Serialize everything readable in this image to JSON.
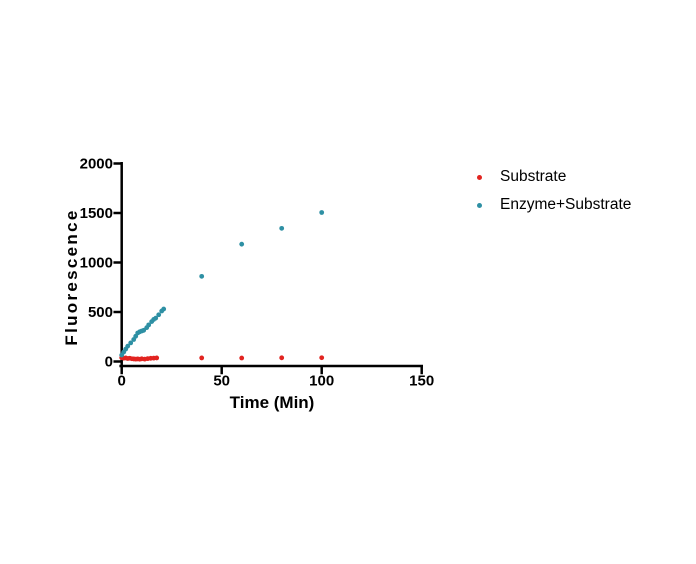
{
  "chart_data": {
    "type": "scatter",
    "title": "",
    "xlabel": "Time (Min)",
    "ylabel": "Fluorescence",
    "xlim": [
      0,
      150
    ],
    "ylim": [
      0,
      2000
    ],
    "x_ticks": [
      0,
      50,
      100,
      150
    ],
    "y_ticks": [
      0,
      500,
      1000,
      1500,
      2000
    ],
    "grid": false,
    "legend_position": "right",
    "background": "#ffffff",
    "axis_color": "#000000",
    "series": [
      {
        "name": "Substrate",
        "color": "#e22420",
        "points": [
          [
            0,
            38
          ],
          [
            1,
            33
          ],
          [
            2,
            36
          ],
          [
            3,
            30
          ],
          [
            4,
            33
          ],
          [
            5,
            28
          ],
          [
            6,
            26
          ],
          [
            7,
            24
          ],
          [
            8,
            26
          ],
          [
            9,
            23
          ],
          [
            10,
            27
          ],
          [
            11.5,
            24
          ],
          [
            13,
            29
          ],
          [
            14.5,
            32
          ],
          [
            16,
            34
          ],
          [
            17.5,
            36
          ],
          [
            40,
            36
          ],
          [
            60,
            35
          ],
          [
            80,
            37
          ],
          [
            100,
            38
          ]
        ]
      },
      {
        "name": "Enzyme+Substrate",
        "color": "#2e90a4",
        "points": [
          [
            0,
            65
          ],
          [
            1,
            95
          ],
          [
            2,
            125
          ],
          [
            3,
            155
          ],
          [
            4.5,
            188
          ],
          [
            6,
            222
          ],
          [
            7,
            255
          ],
          [
            8,
            288
          ],
          [
            9,
            300
          ],
          [
            10,
            308
          ],
          [
            11,
            315
          ],
          [
            12.5,
            342
          ],
          [
            13.5,
            370
          ],
          [
            15,
            403
          ],
          [
            16,
            425
          ],
          [
            17,
            438
          ],
          [
            18.5,
            472
          ],
          [
            20,
            510
          ],
          [
            21,
            530
          ],
          [
            40,
            860
          ],
          [
            60,
            1185
          ],
          [
            80,
            1345
          ],
          [
            100,
            1505
          ]
        ]
      }
    ]
  }
}
